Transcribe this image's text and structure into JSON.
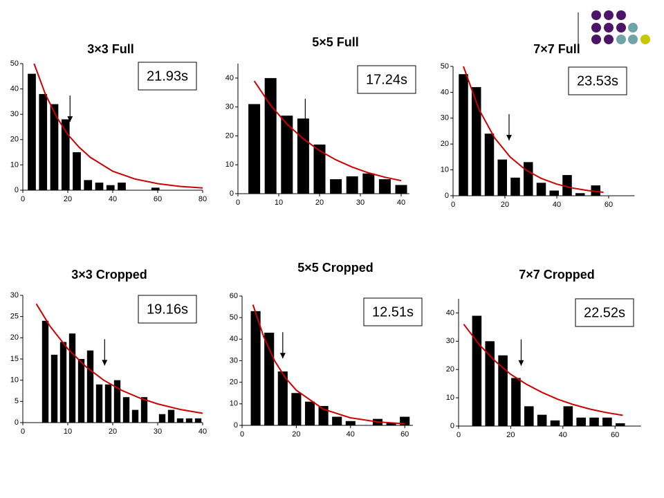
{
  "chart_data": [
    {
      "type": "bar",
      "title": "3×3 Full",
      "annotation": "21.93s",
      "x": [
        4,
        9,
        14,
        19,
        24,
        29,
        34,
        39,
        44,
        59
      ],
      "values": [
        46,
        38,
        34,
        28,
        15,
        4,
        3,
        2,
        3,
        1
      ],
      "color": "#000000",
      "xlim": [
        0,
        80
      ],
      "xticks": [
        0,
        20,
        40,
        60,
        80
      ],
      "ylim": [
        0,
        50
      ],
      "yticks": [
        0,
        10,
        20,
        30,
        40,
        50
      ],
      "fit": {
        "x": [
          5,
          10,
          15,
          20,
          25,
          30,
          40,
          50,
          60,
          70,
          80
        ],
        "values": [
          50,
          38,
          29,
          22,
          17,
          13,
          7.5,
          4.4,
          2.6,
          1.5,
          0.9
        ],
        "color": "#cc0000"
      },
      "arrow_x": 21
    },
    {
      "type": "bar",
      "title": "5×5 Full",
      "annotation": "17.24s",
      "x": [
        4,
        8,
        12,
        16,
        20,
        24,
        28,
        32,
        36,
        40
      ],
      "values": [
        31,
        40,
        27,
        26,
        17,
        5,
        6,
        7,
        5,
        3
      ],
      "color": "#000000",
      "xlim": [
        0,
        42
      ],
      "xticks": [
        0,
        10,
        20,
        30,
        40
      ],
      "ylim": [
        0,
        45
      ],
      "yticks": [
        0,
        10,
        20,
        30,
        40
      ],
      "fit": {
        "x": [
          4,
          8,
          12,
          16,
          20,
          24,
          28,
          32,
          36,
          40
        ],
        "values": [
          39,
          30.6,
          24.1,
          19,
          14.9,
          11.7,
          9.2,
          7.2,
          5.7,
          4.5
        ],
        "color": "#cc0000"
      },
      "arrow_x": 16.5
    },
    {
      "type": "bar",
      "title": "7×7 Full",
      "annotation": "23.53s",
      "x": [
        4,
        9,
        14,
        19,
        24,
        29,
        34,
        39,
        44,
        49,
        55
      ],
      "values": [
        47,
        42,
        24,
        14,
        7,
        13,
        5,
        2,
        8,
        1,
        4
      ],
      "color": "#000000",
      "xlim": [
        0,
        70
      ],
      "xticks": [
        0,
        20,
        40,
        60
      ],
      "ylim": [
        0,
        50
      ],
      "yticks": [
        0,
        10,
        20,
        30,
        40,
        50
      ],
      "fit": {
        "x": [
          4,
          10,
          16,
          22,
          28,
          34,
          40,
          46,
          52,
          58
        ],
        "values": [
          50,
          33.4,
          22.4,
          15,
          10,
          6.7,
          4.5,
          3,
          2,
          1.35
        ],
        "color": "#cc0000"
      },
      "arrow_x": 21.6
    },
    {
      "type": "bar",
      "title": "3×3 Cropped",
      "annotation": "19.16s",
      "x": [
        5,
        7,
        9,
        11,
        13,
        15,
        17,
        19,
        21,
        23,
        25,
        27,
        31,
        33,
        35,
        37,
        39
      ],
      "values": [
        24,
        16,
        19,
        21,
        15,
        17,
        9,
        9,
        10,
        6,
        3,
        6,
        2,
        3,
        1,
        1,
        1
      ],
      "color": "#000000",
      "xlim": [
        0,
        40
      ],
      "xticks": [
        0,
        10,
        20,
        30,
        40
      ],
      "ylim": [
        0,
        30
      ],
      "yticks": [
        0,
        5,
        10,
        15,
        20,
        25,
        30
      ],
      "fit": {
        "x": [
          3,
          6,
          10,
          14,
          18,
          22,
          26,
          30,
          35,
          40
        ],
        "values": [
          28,
          22.8,
          17.4,
          13.2,
          10,
          7.6,
          5.8,
          4.4,
          3.1,
          2.2
        ],
        "color": "#cc0000"
      },
      "arrow_x": 18.2
    },
    {
      "type": "bar",
      "title": "5×5 Cropped",
      "annotation": "12.51s",
      "x": [
        5,
        10,
        15,
        20,
        25,
        30,
        35,
        40,
        50,
        55,
        60
      ],
      "values": [
        53,
        43,
        25,
        15,
        11,
        9,
        4,
        2,
        3,
        1,
        4
      ],
      "color": "#000000",
      "xlim": [
        0,
        63
      ],
      "xticks": [
        0,
        20,
        40,
        60
      ],
      "ylim": [
        0,
        60
      ],
      "yticks": [
        0,
        10,
        20,
        30,
        40,
        50,
        60
      ],
      "fit": {
        "x": [
          4,
          8,
          12,
          16,
          20,
          30,
          40,
          50,
          60
        ],
        "values": [
          56,
          41,
          30,
          22,
          16.3,
          7.5,
          3.5,
          1.6,
          0.76
        ],
        "color": "#cc0000"
      },
      "arrow_x": 15
    },
    {
      "type": "bar",
      "title": "7×7 Cropped",
      "annotation": "22.52s",
      "x": [
        7,
        12,
        17,
        22,
        27,
        32,
        37,
        42,
        47,
        52,
        57,
        62
      ],
      "values": [
        39,
        30,
        25,
        17,
        7,
        4,
        2,
        7,
        3,
        3,
        3,
        1
      ],
      "color": "#000000",
      "xlim": [
        0,
        70
      ],
      "xticks": [
        0,
        20,
        40,
        60
      ],
      "ylim": [
        0,
        45
      ],
      "yticks": [
        0,
        10,
        20,
        30,
        40
      ],
      "fit": {
        "x": [
          2,
          8,
          14,
          20,
          26,
          32,
          38,
          44,
          50,
          56,
          63
        ],
        "values": [
          36,
          28.7,
          23,
          18.3,
          14.8,
          11.9,
          9.5,
          7.6,
          6.1,
          4.9,
          3.8
        ],
        "color": "#cc0000"
      },
      "arrow_x": 24
    }
  ]
}
